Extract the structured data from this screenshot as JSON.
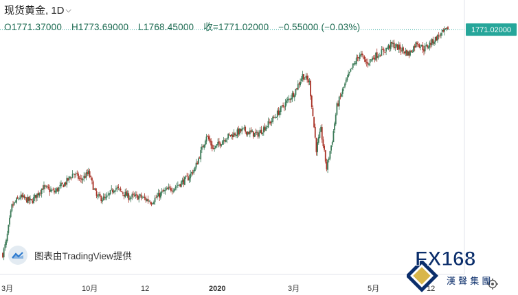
{
  "header": {
    "instrument": "现货黄金, 1D",
    "ohlc": [
      "O1771.37000",
      "H1773.69000",
      "L1768.45000",
      "收=1771.02000",
      "−0.55000 (−0.03%)"
    ]
  },
  "price_label": "1771.02000",
  "watermark_text": "图表由TradingView提供",
  "logo": {
    "text": "FX168",
    "subtext": "漢 聲 集 團"
  },
  "colors": {
    "up": "#26a69a",
    "down": "#c0392b",
    "accent": "#26a69a",
    "candle_up": "#3b7a57",
    "candle_down": "#a93226"
  },
  "chart_data": {
    "type": "candlestick",
    "title": "现货黄金, 1D",
    "x_tick_labels": [
      "3月",
      "10月",
      "12",
      "2020",
      "3月",
      "5月",
      "12"
    ],
    "ylim": [
      1260,
      1790
    ],
    "last_price": 1771.02,
    "keypoints": [
      {
        "i": 0,
        "v": 1300
      },
      {
        "i": 3,
        "v": 1325
      },
      {
        "i": 8,
        "v": 1400
      },
      {
        "i": 15,
        "v": 1420
      },
      {
        "i": 25,
        "v": 1410
      },
      {
        "i": 35,
        "v": 1440
      },
      {
        "i": 45,
        "v": 1430
      },
      {
        "i": 55,
        "v": 1450
      },
      {
        "i": 62,
        "v": 1470
      },
      {
        "i": 68,
        "v": 1455
      },
      {
        "i": 75,
        "v": 1470
      },
      {
        "i": 82,
        "v": 1420
      },
      {
        "i": 90,
        "v": 1415
      },
      {
        "i": 98,
        "v": 1440
      },
      {
        "i": 110,
        "v": 1420
      },
      {
        "i": 120,
        "v": 1420
      },
      {
        "i": 130,
        "v": 1410
      },
      {
        "i": 140,
        "v": 1430
      },
      {
        "i": 150,
        "v": 1440
      },
      {
        "i": 162,
        "v": 1460
      },
      {
        "i": 168,
        "v": 1480
      },
      {
        "i": 174,
        "v": 1520
      },
      {
        "i": 178,
        "v": 1550
      },
      {
        "i": 184,
        "v": 1520
      },
      {
        "i": 195,
        "v": 1545
      },
      {
        "i": 210,
        "v": 1560
      },
      {
        "i": 222,
        "v": 1550
      },
      {
        "i": 235,
        "v": 1580
      },
      {
        "i": 245,
        "v": 1610
      },
      {
        "i": 255,
        "v": 1640
      },
      {
        "i": 262,
        "v": 1675
      },
      {
        "i": 268,
        "v": 1660
      },
      {
        "i": 274,
        "v": 1520
      },
      {
        "i": 278,
        "v": 1560
      },
      {
        "i": 283,
        "v": 1480
      },
      {
        "i": 288,
        "v": 1540
      },
      {
        "i": 292,
        "v": 1610
      },
      {
        "i": 298,
        "v": 1650
      },
      {
        "i": 305,
        "v": 1690
      },
      {
        "i": 312,
        "v": 1720
      },
      {
        "i": 318,
        "v": 1700
      },
      {
        "i": 325,
        "v": 1715
      },
      {
        "i": 332,
        "v": 1725
      },
      {
        "i": 340,
        "v": 1740
      },
      {
        "i": 348,
        "v": 1730
      },
      {
        "i": 355,
        "v": 1720
      },
      {
        "i": 362,
        "v": 1745
      },
      {
        "i": 368,
        "v": 1730
      },
      {
        "i": 375,
        "v": 1745
      },
      {
        "i": 382,
        "v": 1760
      },
      {
        "i": 389,
        "v": 1771
      }
    ],
    "candle_count": 390
  }
}
